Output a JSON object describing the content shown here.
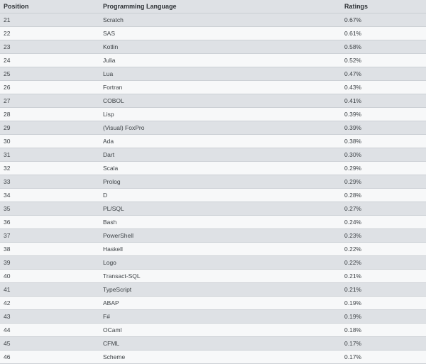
{
  "table": {
    "headers": {
      "position": "Position",
      "language": "Programming Language",
      "ratings": "Ratings"
    },
    "rows": [
      {
        "position": "21",
        "language": "Scratch",
        "rating": "0.67%"
      },
      {
        "position": "22",
        "language": "SAS",
        "rating": "0.61%"
      },
      {
        "position": "23",
        "language": "Kotlin",
        "rating": "0.58%"
      },
      {
        "position": "24",
        "language": "Julia",
        "rating": "0.52%"
      },
      {
        "position": "25",
        "language": "Lua",
        "rating": "0.47%"
      },
      {
        "position": "26",
        "language": "Fortran",
        "rating": "0.43%"
      },
      {
        "position": "27",
        "language": "COBOL",
        "rating": "0.41%"
      },
      {
        "position": "28",
        "language": "Lisp",
        "rating": "0.39%"
      },
      {
        "position": "29",
        "language": "(Visual) FoxPro",
        "rating": "0.39%"
      },
      {
        "position": "30",
        "language": "Ada",
        "rating": "0.38%"
      },
      {
        "position": "31",
        "language": "Dart",
        "rating": "0.30%"
      },
      {
        "position": "32",
        "language": "Scala",
        "rating": "0.29%"
      },
      {
        "position": "33",
        "language": "Prolog",
        "rating": "0.29%"
      },
      {
        "position": "34",
        "language": "D",
        "rating": "0.28%"
      },
      {
        "position": "35",
        "language": "PL/SQL",
        "rating": "0.27%"
      },
      {
        "position": "36",
        "language": "Bash",
        "rating": "0.24%"
      },
      {
        "position": "37",
        "language": "PowerShell",
        "rating": "0.23%"
      },
      {
        "position": "38",
        "language": "Haskell",
        "rating": "0.22%"
      },
      {
        "position": "39",
        "language": "Logo",
        "rating": "0.22%"
      },
      {
        "position": "40",
        "language": "Transact-SQL",
        "rating": "0.21%"
      },
      {
        "position": "41",
        "language": "TypeScript",
        "rating": "0.21%"
      },
      {
        "position": "42",
        "language": "ABAP",
        "rating": "0.19%"
      },
      {
        "position": "43",
        "language": "F#",
        "rating": "0.19%"
      },
      {
        "position": "44",
        "language": "OCaml",
        "rating": "0.18%"
      },
      {
        "position": "45",
        "language": "CFML",
        "rating": "0.17%"
      },
      {
        "position": "46",
        "language": "Scheme",
        "rating": "0.17%"
      }
    ]
  }
}
